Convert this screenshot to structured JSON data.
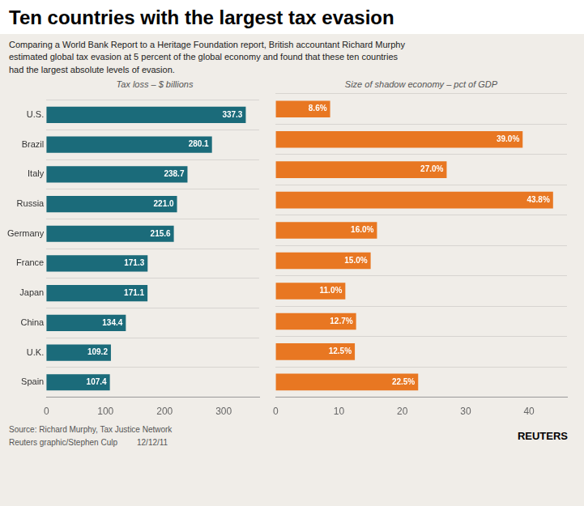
{
  "title": "Ten countries with the largest tax evasion",
  "subtitle": "Comparing a World Bank Report to a Heritage Foundation report, British accountant Richard Murphy\nestimated global tax evasion at 5 percent of the global economy and found that these ten countries\nhad the largest absolute levels of evasion.",
  "annotations": [
    "Source: Richard Murphy, Tax Justice Network",
    "Reuters graphic/Stephen Culp",
    "12/12/11",
    "REUTERS"
  ],
  "chart_data": [
    {
      "type": "bar",
      "orientation": "horizontal",
      "title": "Tax loss – $ billions",
      "categories": [
        "U.S.",
        "Brazil",
        "Italy",
        "Russia",
        "Germany",
        "France",
        "Japan",
        "China",
        "U.K.",
        "Spain"
      ],
      "values": [
        337.3,
        280.1,
        238.7,
        221.0,
        215.6,
        171.3,
        171.1,
        134.4,
        109.2,
        107.4
      ],
      "value_labels": [
        "337.3",
        "280.1",
        "238.7",
        "221.0",
        "215.6",
        "171.3",
        "171.1",
        "134.4",
        "109.2",
        "107.4"
      ],
      "color": "#1b6b7a",
      "xlim": [
        0,
        360
      ],
      "xticks": [
        0,
        100,
        200,
        300
      ],
      "grid": false,
      "data_labels": true
    },
    {
      "type": "bar",
      "orientation": "horizontal",
      "title": "Size of shadow economy – pct of GDP",
      "categories": [
        "U.S.",
        "Brazil",
        "Italy",
        "Russia",
        "Germany",
        "France",
        "Japan",
        "China",
        "U.K.",
        "Spain"
      ],
      "values": [
        8.6,
        39.0,
        27.0,
        43.8,
        16.0,
        15.0,
        11.0,
        12.7,
        12.5,
        22.5
      ],
      "value_labels": [
        "8.6%",
        "39.0%",
        "27.0%",
        "43.8%",
        "16.0%",
        "15.0%",
        "11.0%",
        "12.7%",
        "12.5%",
        "22.5%"
      ],
      "color": "#e87722",
      "xlim": [
        0,
        46
      ],
      "xticks": [
        0,
        10,
        20,
        30,
        40
      ],
      "grid": false,
      "data_labels": true,
      "tick_labels": "x"
    }
  ]
}
